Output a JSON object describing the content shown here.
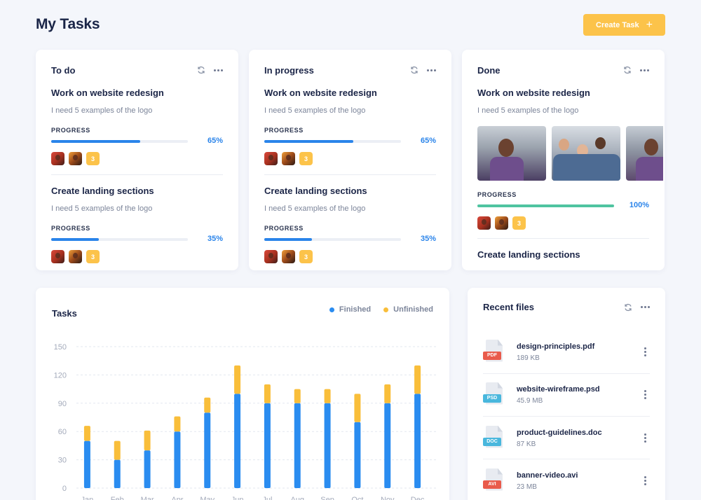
{
  "header": {
    "title": "My Tasks",
    "create_label": "Create Task",
    "create_icon": "+"
  },
  "columns": [
    {
      "title": "To do",
      "tasks": [
        {
          "title": "Work on website redesign",
          "desc": "I need 5 examples of the logo",
          "progress_label": "PROGRESS",
          "progress": 65,
          "progress_text": "65%",
          "count": "3"
        },
        {
          "title": "Create landing sections",
          "desc": "I need 5 examples of the logo",
          "progress_label": "PROGRESS",
          "progress": 35,
          "progress_text": "35%",
          "count": "3"
        }
      ]
    },
    {
      "title": "In progress",
      "tasks": [
        {
          "title": "Work on website redesign",
          "desc": "I need 5 examples of the logo",
          "progress_label": "PROGRESS",
          "progress": 65,
          "progress_text": "65%",
          "count": "3"
        },
        {
          "title": "Create landing sections",
          "desc": "I need 5 examples of the logo",
          "progress_label": "PROGRESS",
          "progress": 35,
          "progress_text": "35%",
          "count": "3"
        }
      ]
    },
    {
      "title": "Done",
      "tasks": [
        {
          "title": "Work on website redesign",
          "desc": "I need 5 examples of the logo",
          "progress_label": "PROGRESS",
          "progress": 100,
          "progress_text": "100%",
          "count": "3"
        },
        {
          "title": "Create landing sections"
        }
      ]
    }
  ],
  "colors": {
    "accent_blue": "#2a84ea",
    "accent_yellow": "#fcc34a",
    "done_green": "#4fc4a0"
  },
  "chart_data": {
    "type": "bar",
    "title": "Tasks",
    "stacked": true,
    "categories": [
      "Jan",
      "Feb",
      "Mar",
      "Apr",
      "May",
      "Jun",
      "Jul",
      "Aug",
      "Sep",
      "Oct",
      "Nov",
      "Dec"
    ],
    "series": [
      {
        "name": "Finished",
        "color": "#2a8cf0",
        "values": [
          50,
          30,
          40,
          60,
          80,
          100,
          90,
          90,
          90,
          70,
          90,
          100
        ]
      },
      {
        "name": "Unfinished",
        "color": "#f9be3a",
        "values": [
          16,
          20,
          21,
          16,
          16,
          30,
          20,
          15,
          15,
          30,
          20,
          30
        ]
      }
    ],
    "y_ticks": [
      "150",
      "120",
      "90",
      "60",
      "30",
      "0"
    ],
    "ylim": [
      0,
      150
    ],
    "grid": true,
    "legend_position": "top-right"
  },
  "files": {
    "title": "Recent files",
    "items": [
      {
        "name": "design-principles.pdf",
        "size": "189 KB",
        "type": "PDF",
        "color": "#e95b4b"
      },
      {
        "name": "website-wireframe.psd",
        "size": "45.9 MB",
        "type": "PSD",
        "color": "#49b7dd"
      },
      {
        "name": "product-guidelines.doc",
        "size": "87 KB",
        "type": "DOC",
        "color": "#49b7dd"
      },
      {
        "name": "banner-video.avi",
        "size": "23 MB",
        "type": "AVI",
        "color": "#e95b4b"
      }
    ]
  }
}
